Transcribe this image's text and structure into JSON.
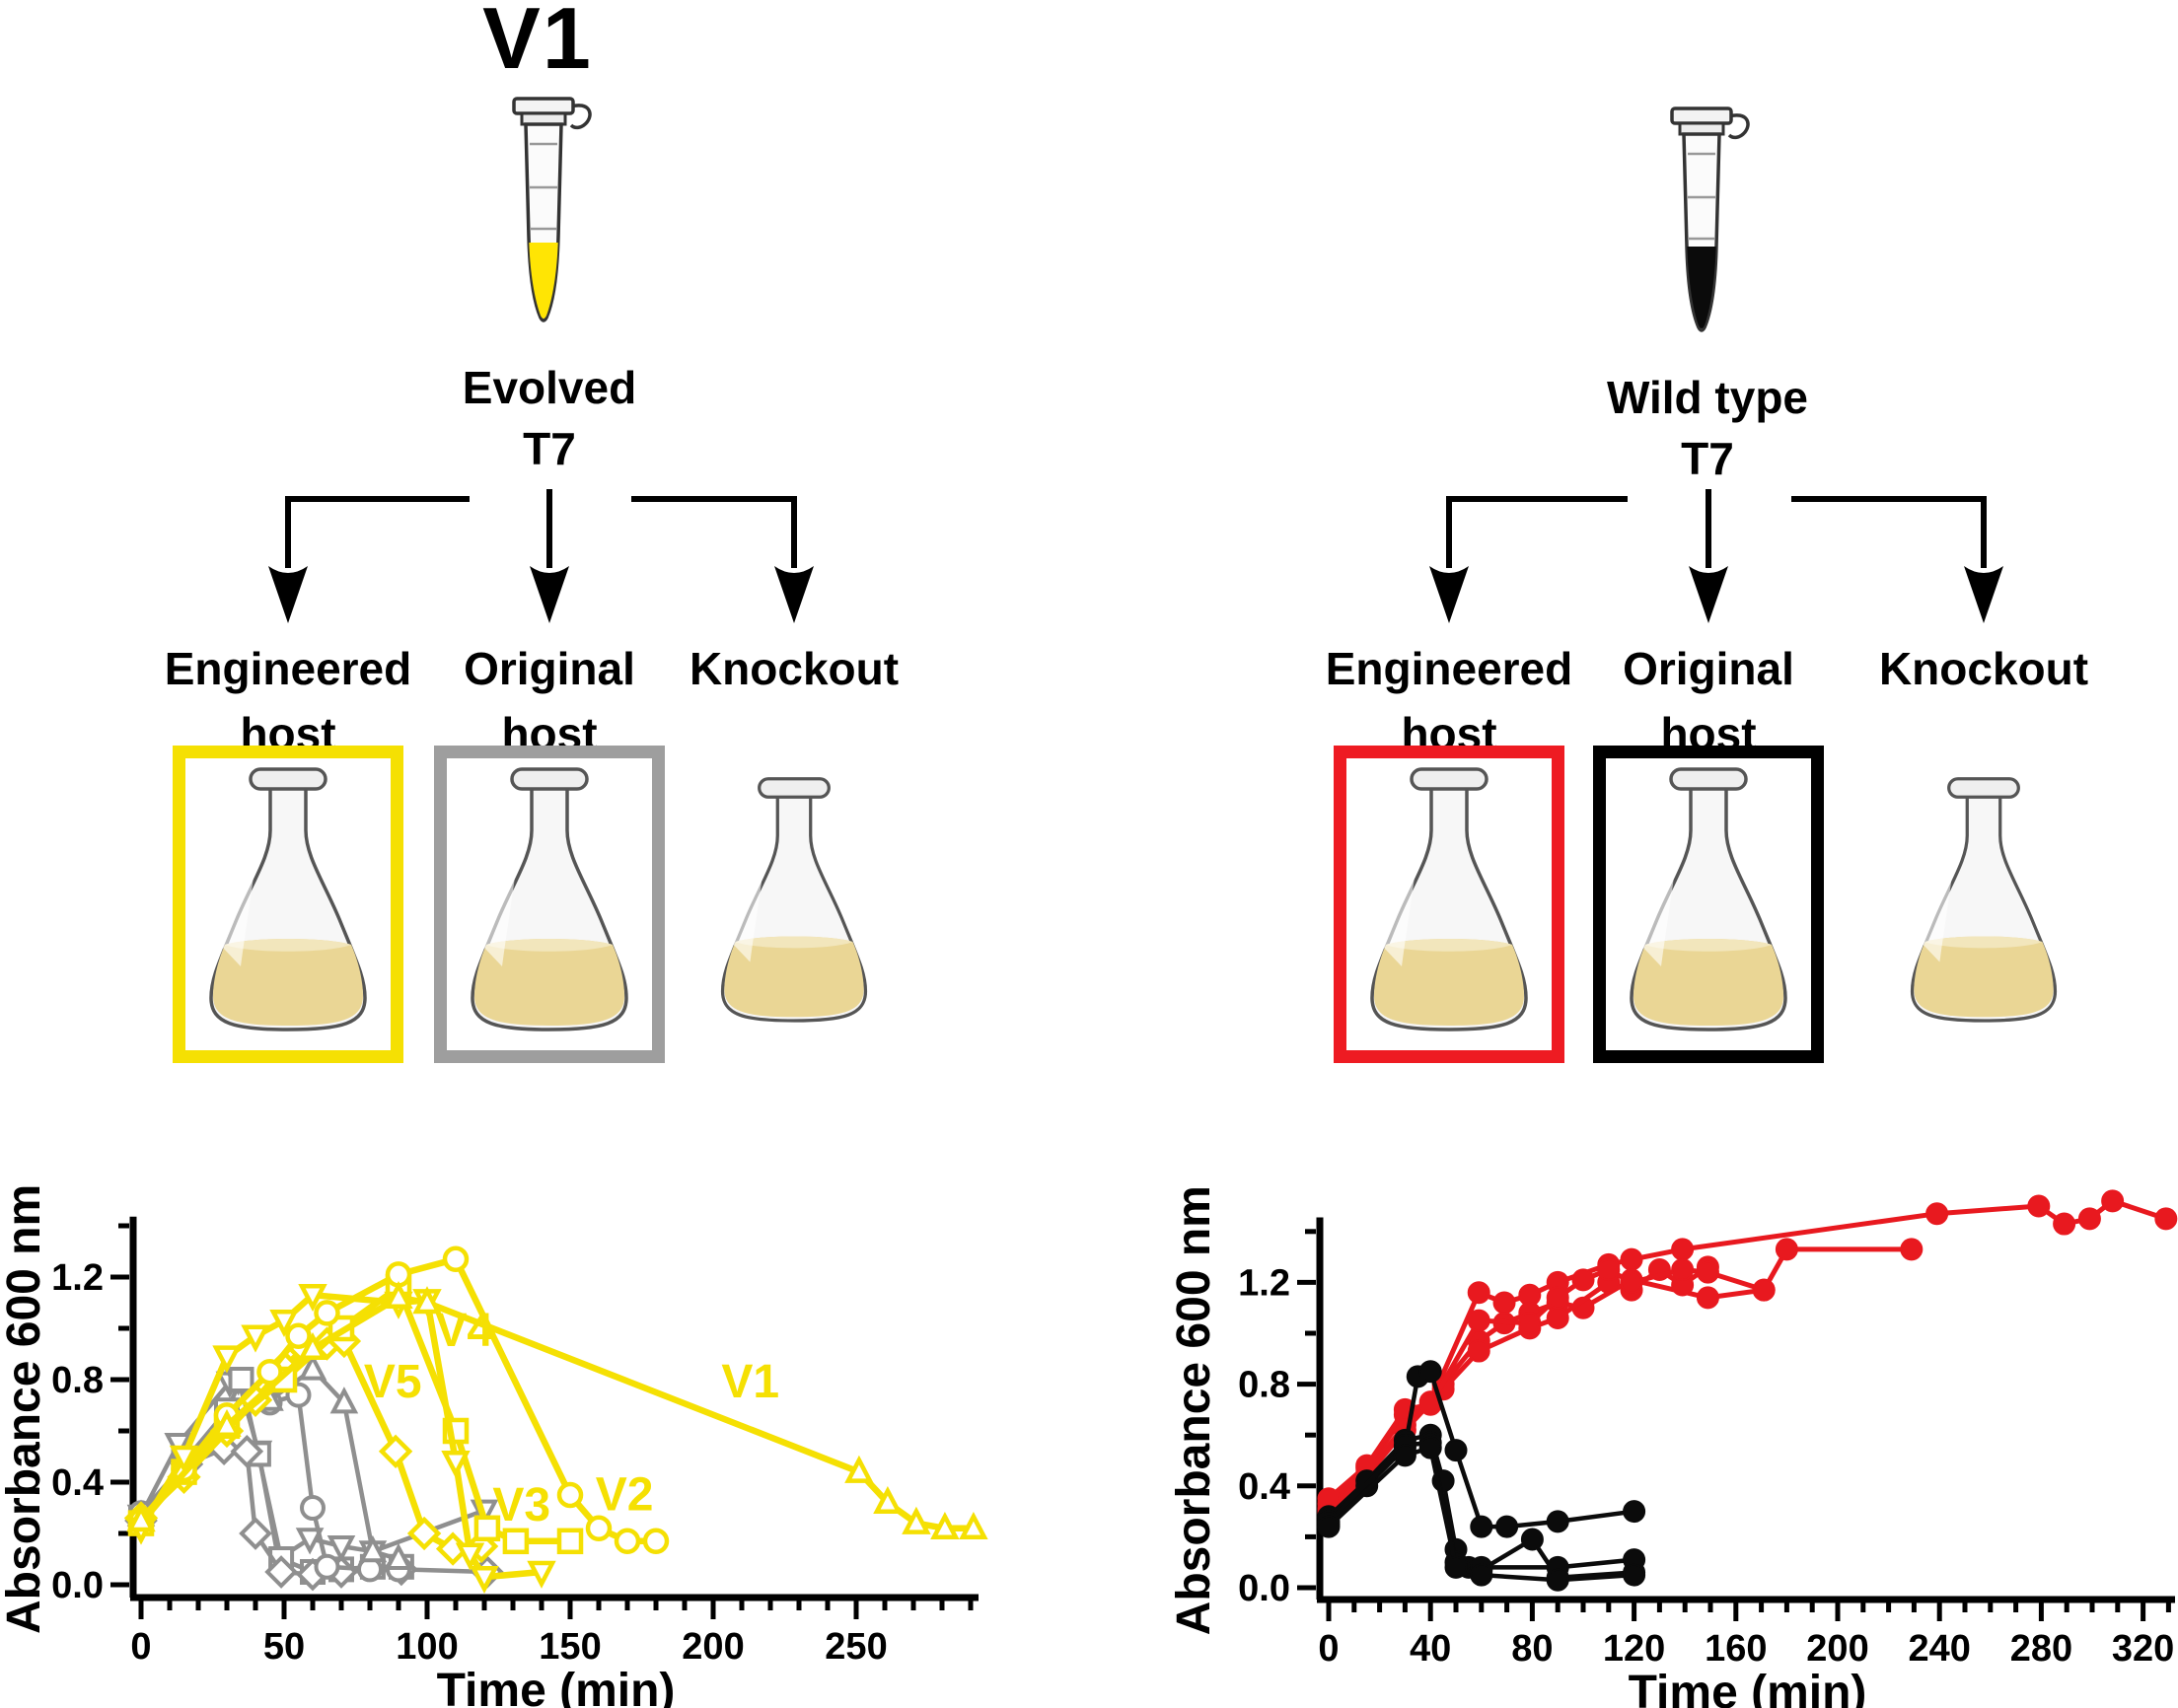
{
  "figure": {
    "left_panel": {
      "title": "V1",
      "tube_label_line1": "Evolved",
      "tube_label_line2": "T7",
      "tube_liquid_color": "#FFE504",
      "hosts": [
        {
          "l1": "Engineered",
          "l2": "host"
        },
        {
          "l1": "Original",
          "l2": "host"
        },
        {
          "l1": "Knockout",
          "l2": ""
        }
      ],
      "box_colors": [
        "#F5E003",
        "#9E9E9E",
        "transparent"
      ]
    },
    "right_panel": {
      "tube_label_line1": "Wild type",
      "tube_label_line2": "T7",
      "tube_liquid_color": "#0B0B0B",
      "hosts": [
        {
          "l1": "Engineered",
          "l2": "host"
        },
        {
          "l1": "Original",
          "l2": "host"
        },
        {
          "l1": "Knockout",
          "l2": ""
        }
      ],
      "box_colors": [
        "#EE1B22",
        "#000000",
        "transparent"
      ]
    },
    "flask_liquid_color": "#EAD695",
    "flask_liquid_surface": "#F2E6BC"
  },
  "chart_data": [
    {
      "type": "line",
      "title": "",
      "xlabel": "Time (min)",
      "ylabel": "Absorbance 600 nm",
      "xlim": [
        0,
        292
      ],
      "ylim": [
        0,
        1.42
      ],
      "xticks": [
        0,
        50,
        100,
        150,
        200,
        250
      ],
      "xminor": 10,
      "yticks": [
        0.0,
        0.4,
        0.8,
        1.2
      ],
      "yminor": 0.2,
      "grid": false,
      "legend": "in-plot text labels V1-V5",
      "annotations": [
        {
          "text": "V4",
          "x": 113,
          "y": 0.93,
          "color": "#F5E003"
        },
        {
          "text": "V5",
          "x": 88,
          "y": 0.73,
          "color": "#F5E003"
        },
        {
          "text": "V1",
          "x": 213,
          "y": 0.73,
          "color": "#F5E003"
        },
        {
          "text": "V3",
          "x": 133,
          "y": 0.25,
          "color": "#F5E003"
        },
        {
          "text": "V2",
          "x": 169,
          "y": 0.29,
          "color": "#F5E003"
        }
      ],
      "series": [
        {
          "name": "Original host replicate 1",
          "color": "#8F8F8F",
          "marker": "triangle-down",
          "fill": "#FFFFFF",
          "lw": 4.5,
          "mlw": 4,
          "ms": 11,
          "x": [
            0,
            13,
            31,
            34,
            41,
            48,
            59,
            70,
            81,
            120
          ],
          "y": [
            0.27,
            0.55,
            0.79,
            0.8,
            0.52,
            0.1,
            0.18,
            0.15,
            0.13,
            0.29
          ]
        },
        {
          "name": "Original host replicate 2",
          "color": "#8F8F8F",
          "marker": "square",
          "fill": "#FFFFFF",
          "lw": 4.5,
          "mlw": 4,
          "ms": 11,
          "x": [
            0,
            15,
            30,
            35,
            41,
            49,
            60,
            70,
            81,
            91
          ],
          "y": [
            0.26,
            0.48,
            0.68,
            0.8,
            0.51,
            0.1,
            0.05,
            0.06,
            0.07,
            0.07
          ]
        },
        {
          "name": "Original host replicate 3",
          "color": "#8F8F8F",
          "marker": "diamond",
          "fill": "#FFFFFF",
          "lw": 4.5,
          "mlw": 4,
          "ms": 12,
          "x": [
            0,
            16,
            29,
            37,
            40,
            49,
            60,
            70,
            91,
            121
          ],
          "y": [
            0.25,
            0.47,
            0.53,
            0.52,
            0.2,
            0.05,
            0.04,
            0.05,
            0.06,
            0.05
          ]
        },
        {
          "name": "Original host replicate 4",
          "color": "#8F8F8F",
          "marker": "circle",
          "fill": "#FFFFFF",
          "lw": 4.5,
          "mlw": 4,
          "ms": 11,
          "x": [
            0,
            15,
            30,
            45,
            55,
            60,
            65,
            80,
            90
          ],
          "y": [
            0.28,
            0.47,
            0.66,
            0.71,
            0.74,
            0.3,
            0.07,
            0.06,
            0.06
          ]
        },
        {
          "name": "Original host replicate 5",
          "color": "#8F8F8F",
          "marker": "triangle-up",
          "fill": "#FFFFFF",
          "lw": 4.5,
          "mlw": 4,
          "ms": 11,
          "x": [
            0,
            15,
            30,
            45,
            60,
            71,
            81,
            90
          ],
          "y": [
            0.27,
            0.46,
            0.63,
            0.72,
            0.84,
            0.71,
            0.13,
            0.1
          ]
        },
        {
          "name": "V5",
          "color": "#F5E003",
          "marker": "diamond",
          "fill": "#FFFFFF",
          "lw": 6.5,
          "mlw": 4.5,
          "ms": 12,
          "x": [
            0,
            15,
            30,
            40,
            50,
            57,
            65,
            71,
            89,
            99,
            109,
            119
          ],
          "y": [
            0.26,
            0.42,
            0.6,
            0.72,
            0.85,
            0.92,
            0.94,
            0.95,
            0.52,
            0.2,
            0.14,
            0.15
          ]
        },
        {
          "name": "V3",
          "color": "#F5E003",
          "marker": "square",
          "fill": "#FFFFFF",
          "lw": 6.5,
          "mlw": 4.5,
          "ms": 11,
          "x": [
            0,
            15,
            30,
            50,
            70,
            90,
            110,
            121,
            131,
            150
          ],
          "y": [
            0.24,
            0.44,
            0.62,
            0.8,
            1.0,
            1.16,
            0.6,
            0.22,
            0.17,
            0.17
          ]
        },
        {
          "name": "V2",
          "color": "#F5E003",
          "marker": "circle",
          "fill": "#FFFFFF",
          "lw": 6.5,
          "mlw": 4.5,
          "ms": 11,
          "x": [
            0,
            15,
            30,
            45,
            55,
            65,
            90,
            110,
            150,
            160,
            170,
            180
          ],
          "y": [
            0.25,
            0.45,
            0.66,
            0.83,
            0.97,
            1.06,
            1.21,
            1.27,
            0.35,
            0.22,
            0.17,
            0.17
          ]
        },
        {
          "name": "V4",
          "color": "#F5E003",
          "marker": "triangle-down",
          "fill": "#FFFFFF",
          "lw": 6.5,
          "mlw": 4.5,
          "ms": 11,
          "x": [
            0,
            15,
            30,
            40,
            50,
            60,
            90,
            100,
            110,
            115,
            120,
            140
          ],
          "y": [
            0.22,
            0.5,
            0.89,
            0.97,
            1.03,
            1.13,
            1.1,
            1.11,
            0.48,
            0.12,
            0.03,
            0.05
          ]
        },
        {
          "name": "V1",
          "color": "#F5E003",
          "marker": "triangle-up",
          "fill": "#FFFFFF",
          "lw": 6.5,
          "mlw": 4.5,
          "ms": 11,
          "x": [
            0,
            30,
            60,
            90,
            100,
            251,
            261,
            271,
            281,
            291
          ],
          "y": [
            0.25,
            0.62,
            0.92,
            1.12,
            1.1,
            0.44,
            0.32,
            0.24,
            0.22,
            0.22
          ]
        }
      ]
    },
    {
      "type": "line",
      "title": "",
      "xlabel": "Time (min)",
      "ylabel": "Absorbance 600 nm",
      "xlim": [
        0,
        332
      ],
      "ylim": [
        0,
        1.44
      ],
      "xticks": [
        0,
        40,
        80,
        120,
        160,
        200,
        240,
        280,
        320
      ],
      "xminor": 10,
      "yticks": [
        0.0,
        0.4,
        0.8,
        1.2
      ],
      "yminor": 0.2,
      "grid": false,
      "legend": "red = Engineered host, black = Original host",
      "annotations": [],
      "series": [
        {
          "name": "Engineered host replicate 1",
          "color": "#E8191F",
          "marker": "circle",
          "fill": "#E8191F",
          "lw": 5,
          "mlw": 2,
          "ms": 10.5,
          "x": [
            0,
            15,
            30,
            40,
            59,
            69,
            79,
            90,
            110,
            119,
            139,
            239,
            279,
            289,
            299,
            308,
            329
          ],
          "y": [
            0.33,
            0.47,
            0.68,
            0.73,
            1.16,
            1.12,
            1.15,
            1.2,
            1.27,
            1.29,
            1.33,
            1.47,
            1.5,
            1.43,
            1.45,
            1.52,
            1.45
          ]
        },
        {
          "name": "Engineered host replicate 2",
          "color": "#E8191F",
          "marker": "circle",
          "fill": "#E8191F",
          "lw": 5,
          "mlw": 2,
          "ms": 10.5,
          "x": [
            0,
            15,
            30,
            45,
            59,
            69,
            79,
            90,
            100,
            119,
            149,
            171,
            180,
            229
          ],
          "y": [
            0.31,
            0.45,
            0.64,
            0.8,
            0.97,
            1.04,
            1.08,
            1.12,
            1.1,
            1.21,
            1.14,
            1.17,
            1.33,
            1.33
          ]
        },
        {
          "name": "Engineered host replicate 3",
          "color": "#E8191F",
          "marker": "circle",
          "fill": "#E8191F",
          "lw": 5,
          "mlw": 2,
          "ms": 10.5,
          "x": [
            0,
            15,
            30,
            45,
            59,
            79,
            90,
            110,
            119,
            130,
            139,
            149
          ],
          "y": [
            0.3,
            0.44,
            0.62,
            0.78,
            0.93,
            1.02,
            1.06,
            1.2,
            1.17,
            1.25,
            1.19,
            1.26
          ]
        },
        {
          "name": "Engineered host replicate 4",
          "color": "#E8191F",
          "marker": "circle",
          "fill": "#E8191F",
          "lw": 5,
          "mlw": 2,
          "ms": 10.5,
          "x": [
            0,
            15,
            30,
            40,
            59,
            79,
            90,
            100,
            110,
            119,
            139,
            149,
            171
          ],
          "y": [
            0.35,
            0.48,
            0.7,
            0.72,
            1.05,
            1.04,
            1.14,
            1.21,
            1.25,
            1.2,
            1.25,
            1.24,
            1.17
          ]
        },
        {
          "name": "Original host replicate 1",
          "color": "#0B0B0B",
          "marker": "circle",
          "fill": "#0B0B0B",
          "lw": 4.5,
          "mlw": 2,
          "ms": 10.5,
          "x": [
            0,
            15,
            30,
            35,
            40,
            50,
            60,
            70,
            90,
            120
          ],
          "y": [
            0.25,
            0.4,
            0.55,
            0.83,
            0.85,
            0.54,
            0.24,
            0.24,
            0.26,
            0.3
          ]
        },
        {
          "name": "Original host replicate 2",
          "color": "#0B0B0B",
          "marker": "circle",
          "fill": "#0B0B0B",
          "lw": 4.5,
          "mlw": 2,
          "ms": 10.5,
          "x": [
            0,
            15,
            30,
            40,
            45,
            50,
            55,
            60,
            80,
            90,
            120
          ],
          "y": [
            0.28,
            0.42,
            0.58,
            0.6,
            0.42,
            0.15,
            0.08,
            0.07,
            0.19,
            0.04,
            0.06
          ]
        },
        {
          "name": "Original host replicate 3",
          "color": "#0B0B0B",
          "marker": "circle",
          "fill": "#0B0B0B",
          "lw": 4.5,
          "mlw": 2,
          "ms": 10.5,
          "x": [
            0,
            30,
            40,
            50,
            60,
            90,
            120
          ],
          "y": [
            0.26,
            0.56,
            0.57,
            0.1,
            0.08,
            0.08,
            0.11
          ]
        },
        {
          "name": "Original host replicate 4",
          "color": "#0B0B0B",
          "marker": "circle",
          "fill": "#0B0B0B",
          "lw": 4.5,
          "mlw": 2,
          "ms": 10.5,
          "x": [
            0,
            30,
            40,
            50,
            60,
            90,
            120
          ],
          "y": [
            0.24,
            0.52,
            0.55,
            0.08,
            0.05,
            0.03,
            0.05
          ]
        }
      ]
    }
  ]
}
